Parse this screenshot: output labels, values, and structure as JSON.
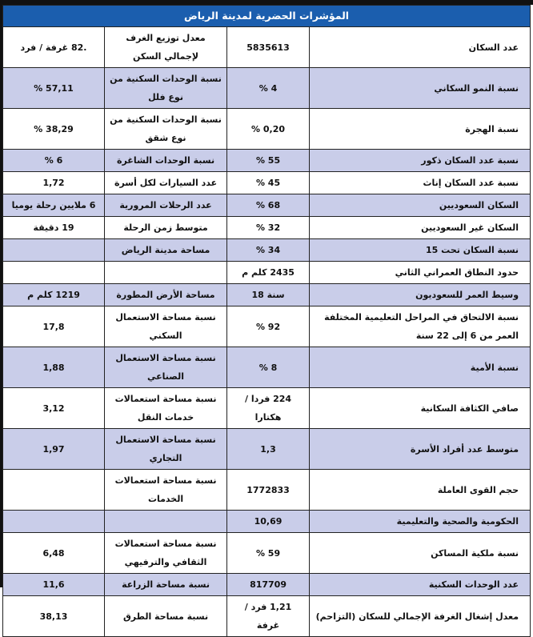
{
  "title": "المؤشرات الحضرية لمدينة الرياض",
  "colors": {
    "header": "#1b5eae",
    "shade": "#c9cde9"
  },
  "rows": [
    {
      "label1": "عدد السكان",
      "value1": "5835613",
      "label2": "معدل توزيع الغرف لإجمالي السكن",
      "value2": ".82 غرفة / فرد",
      "shaded": false
    },
    {
      "label1": "نسبة النمو السكاني",
      "value1": "4 %",
      "label2": "نسبة الوحدات السكنية من نوع فلل",
      "value2": "57,11 %",
      "shaded": true
    },
    {
      "label1": "نسبة الهجرة",
      "value1": "0,20 %",
      "label2": "نسبة الوحدات السكنية من نوع شقق",
      "value2": "38,29 %",
      "shaded": false
    },
    {
      "label1": "نسبة عدد السكان ذكور",
      "value1": "55 %",
      "label2": "نسبة الوحدات الشاغرة",
      "value2": "6 %",
      "shaded": true
    },
    {
      "label1": "نسبة عدد السكان إناث",
      "value1": "45 %",
      "label2": "عدد السيارات لكل أسرة",
      "value2": "1,72",
      "shaded": false
    },
    {
      "label1": "السكان السعوديين",
      "value1": "68 %",
      "label2": "عدد الرحلات المرورية",
      "value2": "6 ملايين رحلة يوميا",
      "shaded": true
    },
    {
      "label1": "السكان غير السعوديين",
      "value1": "32 %",
      "label2": "متوسط زمن الرحلة",
      "value2": "19 دقيقة",
      "shaded": false
    },
    {
      "label1": "نسبة السكان تحت 15",
      "value1": "34 %",
      "label2": "مساحة مدينة الرياض",
      "value2": "",
      "shaded": true
    },
    {
      "label1": "حدود النطاق العمراني الثاني",
      "value1": "2435 كلم م",
      "label2": "",
      "value2": "",
      "shaded": false
    },
    {
      "label1": "وسيط العمر للسعوديون",
      "value1": "سنة 18",
      "label2": "مساحة الأرض المطورة",
      "value2": "1219 كلم م",
      "shaded": true
    },
    {
      "label1": "نسبة الالتحاق في المراحل التعليمية المختلفة العمر من 6 إلى 22 سنة",
      "value1": "92 %",
      "label2": "نسبة مساحة الاستعمال السكني",
      "value2": "17,8",
      "shaded": false
    },
    {
      "label1": "نسبة الأمية",
      "value1": "8 %",
      "label2": "نسبة مساحة الاستعمال الصناعي",
      "value2": "1,88",
      "shaded": true
    },
    {
      "label1": "صافي الكثافة السكانية",
      "value1": "224 فردا / هكتارا",
      "label2": "نسبة مساحة استعمالات خدمات النقل",
      "value2": "3,12",
      "shaded": false
    },
    {
      "label1": "متوسط عدد أفراد الأسرة",
      "value1": "1,3",
      "label2": "نسبة مساحة الاستعمال التجاري",
      "value2": "1,97",
      "shaded": true
    },
    {
      "label1": "حجم القوى العاملة",
      "value1": "1772833",
      "label2": "نسبة مساحة استعمالات الخدمات",
      "value2": "",
      "shaded": false
    },
    {
      "label1": "الحكومية والصحية والتعليمية",
      "value1": "10,69",
      "label2": "",
      "value2": "",
      "shaded": true
    },
    {
      "label1": "نسبة ملكية المساكن",
      "value1": "59 %",
      "label2": "نسبة مساحة استعمالات الثقافي والترفيهي",
      "value2": "6,48",
      "shaded": false
    },
    {
      "label1": "عدد الوحدات السكنية",
      "value1": "817709",
      "label2": "نسبة مساحة الزراعة",
      "value2": "11,6",
      "shaded": true
    },
    {
      "label1": "معدل إشغال الغرفة الإجمالي للسكان (التزاحم)",
      "value1": "1,21 فرد / غرفة",
      "label2": "نسبة مساحة الطرق",
      "value2": "38,13",
      "shaded": false
    }
  ]
}
